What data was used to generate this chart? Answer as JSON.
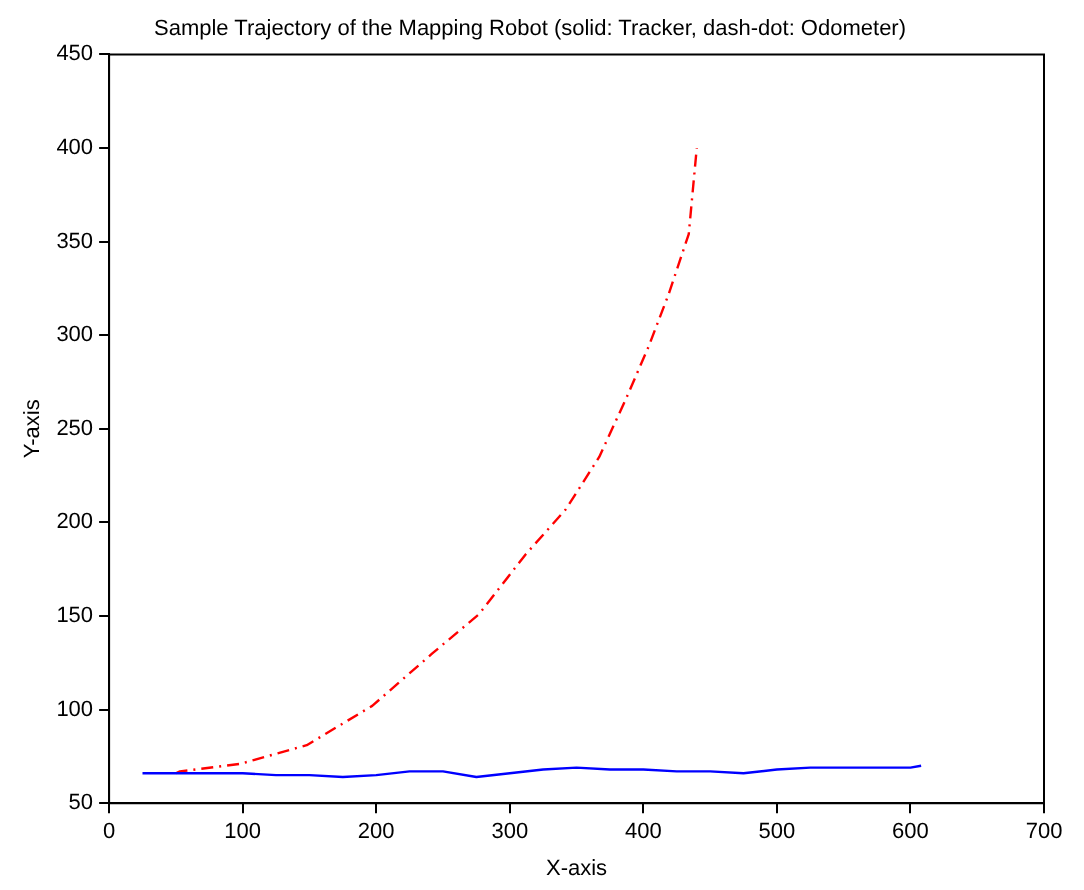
{
  "chart_data": {
    "type": "line",
    "title": "Sample Trajectory of the Mapping Robot (solid: Tracker, dash-dot: Odometer)",
    "xlabel": "X-axis",
    "ylabel": "Y-axis",
    "xlim": [
      0,
      700
    ],
    "xticks": [
      0,
      100,
      200,
      300,
      400,
      500,
      600,
      700
    ],
    "ylim": [
      50,
      450
    ],
    "yticks": [
      50,
      100,
      150,
      200,
      250,
      300,
      350,
      400,
      450
    ],
    "grid": false,
    "legend": false,
    "marker": "none",
    "series": [
      {
        "color": "#0000ff",
        "line_style": "solid",
        "x": [
          25,
          50,
          75,
          100,
          125,
          150,
          175,
          200,
          225,
          250,
          275,
          300,
          325,
          350,
          375,
          400,
          425,
          450,
          475,
          500,
          525,
          550,
          575,
          600,
          608
        ],
        "values": [
          66,
          66,
          66,
          66,
          65,
          65,
          64,
          65,
          67,
          67,
          64,
          66,
          68,
          69,
          68,
          68,
          67,
          67,
          66,
          68,
          69,
          69,
          69,
          69,
          70
        ]
      },
      {
        "color": "#ff0000",
        "line_style": "dashdot",
        "x": [
          50,
          53,
          98,
          148,
          197,
          242,
          277,
          312,
          342,
          367,
          387,
          404,
          419,
          434,
          440
        ],
        "values": [
          66,
          67,
          71,
          81,
          102,
          130,
          151,
          183,
          207,
          235,
          266,
          294,
          322,
          354,
          400
        ]
      }
    ]
  }
}
